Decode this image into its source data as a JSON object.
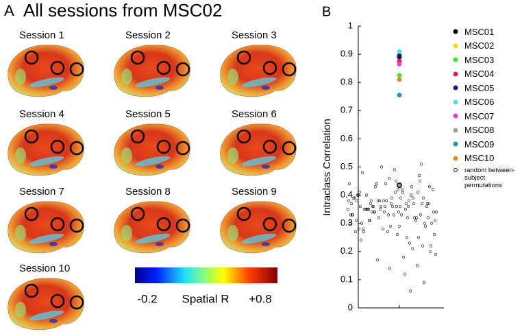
{
  "panel_a": {
    "label": "A",
    "title": "All sessions from MSC02",
    "sessions": [
      "Session 1",
      "Session 2",
      "Session 3",
      "Session 4",
      "Session 5",
      "Session 6",
      "Session 7",
      "Session 8",
      "Session 9",
      "Session 10"
    ],
    "colorbar": {
      "min_label": "-0.2",
      "title": "Spatial R",
      "max_label": "+0.8"
    }
  },
  "panel_b": {
    "label": "B"
  },
  "chart_data": {
    "type": "scatter",
    "ylabel": "Intraclass Correlation",
    "ylim": [
      0,
      1
    ],
    "yticks": [
      0,
      0.1,
      0.2,
      0.3,
      0.4,
      0.5,
      0.6,
      0.7,
      0.8,
      0.9,
      1
    ],
    "series": [
      {
        "name": "MSC01",
        "color": "#000000",
        "values": [
          0.89
        ]
      },
      {
        "name": "MSC02",
        "color": "#f0e000",
        "values": [
          0.9
        ]
      },
      {
        "name": "MSC03",
        "color": "#33ee33",
        "values": [
          0.825
        ]
      },
      {
        "name": "MSC04",
        "color": "#e8203a",
        "values": [
          0.875
        ]
      },
      {
        "name": "MSC05",
        "color": "#1a1a8c",
        "values": [
          0.895
        ]
      },
      {
        "name": "MSC06",
        "color": "#55e0f0",
        "values": [
          0.91
        ]
      },
      {
        "name": "MSC07",
        "color": "#e040e0",
        "values": [
          0.865
        ]
      },
      {
        "name": "MSC08",
        "color": "#a0a0a0",
        "values": [
          0.435
        ]
      },
      {
        "name": "MSC09",
        "color": "#1a9a9a",
        "values": [
          0.755
        ]
      },
      {
        "name": "MSC10",
        "color": "#f08a1a",
        "values": [
          0.81
        ]
      },
      {
        "name": "random between-subject permutations",
        "color": "#000000",
        "filled": false,
        "values": [
          0.35,
          0.42,
          0.28,
          0.38,
          0.31,
          0.45,
          0.36,
          0.22,
          0.39,
          0.33,
          0.41,
          0.27,
          0.37,
          0.34,
          0.3,
          0.44,
          0.19,
          0.36,
          0.4,
          0.32,
          0.35,
          0.25,
          0.38,
          0.43,
          0.29,
          0.37,
          0.33,
          0.48,
          0.21,
          0.36,
          0.39,
          0.34,
          0.26,
          0.41,
          0.31,
          0.37,
          0.35,
          0.15,
          0.38,
          0.32,
          0.46,
          0.3,
          0.36,
          0.24,
          0.4,
          0.34,
          0.37,
          0.28,
          0.42,
          0.33,
          0.39,
          0.12,
          0.35,
          0.31,
          0.44,
          0.36,
          0.27,
          0.38,
          0.34,
          0.41,
          0.23,
          0.37,
          0.33,
          0.5,
          0.3,
          0.36,
          0.39,
          0.18,
          0.35,
          0.32,
          0.43,
          0.29,
          0.38,
          0.34,
          0.26,
          0.4,
          0.36,
          0.31,
          0.47,
          0.35,
          0.2,
          0.37,
          0.33,
          0.42,
          0.28,
          0.39,
          0.34,
          0.09,
          0.36,
          0.31,
          0.45,
          0.38,
          0.25,
          0.35,
          0.41,
          0.32,
          0.37,
          0.14,
          0.33,
          0.39,
          0.3,
          0.43,
          0.36,
          0.22,
          0.38,
          0.34,
          0.49,
          0.27,
          0.35,
          0.4,
          0.32,
          0.17,
          0.37,
          0.33,
          0.44,
          0.29,
          0.36,
          0.06,
          0.38,
          0.51
        ]
      }
    ]
  }
}
